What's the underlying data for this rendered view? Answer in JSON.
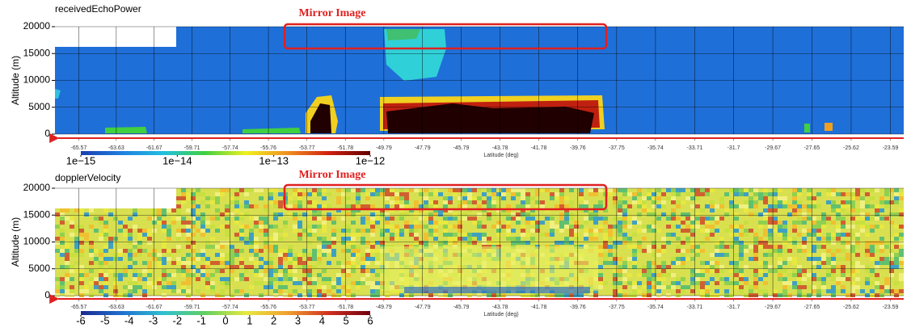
{
  "chart_data": [
    {
      "type": "curtain",
      "title": "receivedEchoPower",
      "ylabel": "Altitude (m)",
      "xlabel": "Latitude (deg)",
      "annotation": "Mirror Image",
      "xlim": [
        -66.8,
        -22.9
      ],
      "xticks": [
        -65.57,
        -63.63,
        -61.67,
        -59.71,
        -57.74,
        -55.76,
        -53.77,
        -51.78,
        -49.79,
        -47.79,
        -45.79,
        -43.78,
        -41.78,
        -39.76,
        -37.75,
        -35.74,
        -33.71,
        -31.7,
        -29.67,
        -27.65,
        -25.62,
        -23.59
      ],
      "ylim": [
        0,
        20000
      ],
      "yticks": [
        0,
        5000,
        10000,
        15000,
        20000
      ],
      "grid": true,
      "colorbar": {
        "log": true,
        "lim": [
          1e-15,
          1e-12
        ],
        "colors": [
          "#1a3fb0",
          "#1f7fe0",
          "#20c0e0",
          "#40d040",
          "#f0f020",
          "#f09020",
          "#d02010",
          "#600000"
        ],
        "ticks": [
          {
            "value": 1e-15,
            "label": "1e−15"
          },
          {
            "value": 1e-14,
            "label": "1e−14"
          },
          {
            "value": 1e-13,
            "label": "1e−13"
          },
          {
            "value": 1e-12,
            "label": "1e−12"
          }
        ]
      }
    },
    {
      "type": "curtain",
      "title": "dopplerVelocity",
      "ylabel": "Altitude (m)",
      "xlabel": "Latitude (deg)",
      "annotation": "Mirror Image",
      "xlim": [
        -66.8,
        -22.9
      ],
      "xticks": [
        -65.57,
        -63.63,
        -61.67,
        -59.71,
        -57.74,
        -55.76,
        -53.77,
        -51.78,
        -49.79,
        -47.79,
        -45.79,
        -43.78,
        -41.78,
        -39.76,
        -37.75,
        -35.74,
        -33.71,
        -31.7,
        -29.67,
        -27.65,
        -25.62,
        -23.59
      ],
      "ylim": [
        0,
        20000
      ],
      "yticks": [
        0,
        5000,
        10000,
        15000,
        20000
      ],
      "grid": true,
      "colorbar": {
        "log": false,
        "lim": [
          -6,
          6
        ],
        "colors": [
          "#1a2a90",
          "#2070d0",
          "#30c0d0",
          "#60d060",
          "#e8e840",
          "#f0a030",
          "#d03020",
          "#700010"
        ],
        "ticks": [
          -6,
          -5,
          -4,
          -3,
          -2,
          -1,
          0,
          1,
          2,
          3,
          4,
          5,
          6
        ]
      }
    }
  ]
}
